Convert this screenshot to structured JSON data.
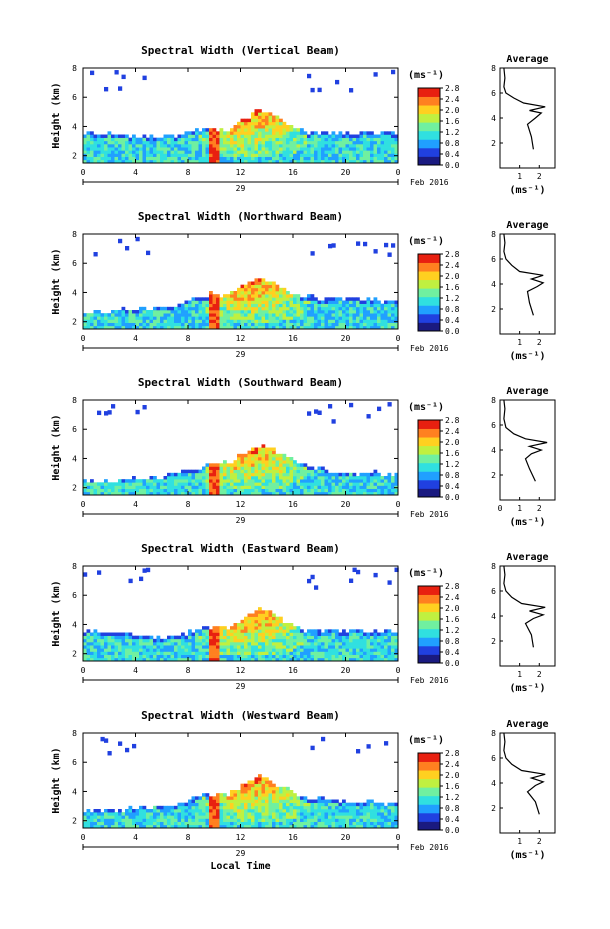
{
  "chart_data": [
    {
      "type": "heatmap",
      "title": "Spectral Width (Vertical Beam)",
      "ylabel": "Height (km)",
      "xlim": [
        0,
        24
      ],
      "ylim": [
        1.5,
        8
      ],
      "x_ticks": [
        "0",
        "4",
        "8",
        "12",
        "16",
        "20",
        "0"
      ],
      "y_ticks": [
        "2",
        "4",
        "6",
        "8"
      ],
      "date_labels": {
        "day": "29",
        "month": "Feb 2016"
      },
      "colorbar": {
        "units": "(ms⁻¹)",
        "ticks": [
          "0.0",
          "0.4",
          "0.8",
          "1.2",
          "1.6",
          "2.0",
          "2.4",
          "2.8"
        ]
      },
      "envelope": [
        {
          "x": 0,
          "h": 3.6
        },
        {
          "x": 3,
          "h": 3.4
        },
        {
          "x": 6,
          "h": 3.2
        },
        {
          "x": 8,
          "h": 3.6
        },
        {
          "x": 9.5,
          "h": 4.0
        },
        {
          "x": 11,
          "h": 3.8
        },
        {
          "x": 12.5,
          "h": 4.6
        },
        {
          "x": 13.5,
          "h": 5.2
        },
        {
          "x": 14.5,
          "h": 4.8
        },
        {
          "x": 16,
          "h": 4.0
        },
        {
          "x": 17,
          "h": 3.6
        },
        {
          "x": 20,
          "h": 3.6
        },
        {
          "x": 24,
          "h": 3.6
        }
      ],
      "average": {
        "title": "Average",
        "xlabel": "(ms⁻¹)",
        "x_ticks": [
          "1",
          "2"
        ],
        "y_ticks": [
          "2",
          "4",
          "6",
          "8"
        ],
        "xlim": [
          0,
          2.8
        ],
        "ylim": [
          0,
          8
        ],
        "profile": [
          [
            1.7,
            1.5
          ],
          [
            1.6,
            2.5
          ],
          [
            1.4,
            3.5
          ],
          [
            1.8,
            4.0
          ],
          [
            2.1,
            4.4
          ],
          [
            1.5,
            4.6
          ],
          [
            2.3,
            4.9
          ],
          [
            1.2,
            5.2
          ],
          [
            0.7,
            5.6
          ],
          [
            0.3,
            6.0
          ],
          [
            0.2,
            6.5
          ],
          [
            0.25,
            7.2
          ],
          [
            0.2,
            8.0
          ]
        ]
      }
    },
    {
      "type": "heatmap",
      "title": "Spectral Width (Northward Beam)",
      "ylabel": "Height (km)",
      "xlim": [
        0,
        24
      ],
      "ylim": [
        1.5,
        8
      ],
      "x_ticks": [
        "0",
        "4",
        "8",
        "12",
        "16",
        "20",
        "0"
      ],
      "y_ticks": [
        "2",
        "4",
        "6",
        "8"
      ],
      "date_labels": {
        "day": "29",
        "month": "Feb 2016"
      },
      "colorbar": {
        "units": "(ms⁻¹)",
        "ticks": [
          "0.0",
          "0.4",
          "0.8",
          "1.2",
          "1.6",
          "2.0",
          "2.4",
          "2.8"
        ]
      },
      "envelope": [
        {
          "x": 0,
          "h": 2.6
        },
        {
          "x": 3,
          "h": 2.8
        },
        {
          "x": 6,
          "h": 3.0
        },
        {
          "x": 8,
          "h": 3.4
        },
        {
          "x": 9.5,
          "h": 3.9
        },
        {
          "x": 11,
          "h": 3.8
        },
        {
          "x": 12.5,
          "h": 4.6
        },
        {
          "x": 13.5,
          "h": 5.1
        },
        {
          "x": 14.5,
          "h": 4.7
        },
        {
          "x": 16,
          "h": 4.0
        },
        {
          "x": 17,
          "h": 3.7
        },
        {
          "x": 20,
          "h": 3.6
        },
        {
          "x": 24,
          "h": 3.4
        }
      ],
      "average": {
        "title": "Average",
        "xlabel": "(ms⁻¹)",
        "x_ticks": [
          "1",
          "2"
        ],
        "y_ticks": [
          "2",
          "4",
          "6",
          "8"
        ],
        "xlim": [
          0,
          2.8
        ],
        "ylim": [
          0,
          8
        ],
        "profile": [
          [
            1.7,
            1.5
          ],
          [
            1.5,
            2.5
          ],
          [
            1.4,
            3.4
          ],
          [
            1.9,
            3.8
          ],
          [
            2.2,
            4.1
          ],
          [
            1.6,
            4.4
          ],
          [
            2.2,
            4.7
          ],
          [
            1.0,
            5.0
          ],
          [
            0.6,
            5.5
          ],
          [
            0.3,
            6.0
          ],
          [
            0.2,
            6.6
          ],
          [
            0.25,
            7.3
          ],
          [
            0.2,
            8.0
          ]
        ]
      }
    },
    {
      "type": "heatmap",
      "title": "Spectral Width (Southward Beam)",
      "ylabel": "Height (km)",
      "xlim": [
        0,
        24
      ],
      "ylim": [
        1.5,
        8
      ],
      "x_ticks": [
        "0",
        "4",
        "8",
        "12",
        "16",
        "20",
        "0"
      ],
      "y_ticks": [
        "2",
        "4",
        "6",
        "8"
      ],
      "date_labels": {
        "day": "29",
        "month": "Feb 2016"
      },
      "colorbar": {
        "units": "(ms⁻¹)",
        "ticks": [
          "0.0",
          "0.4",
          "0.8",
          "1.2",
          "1.6",
          "2.0",
          "2.4",
          "2.8"
        ]
      },
      "envelope": [
        {
          "x": 0,
          "h": 2.4
        },
        {
          "x": 3,
          "h": 2.6
        },
        {
          "x": 6,
          "h": 2.8
        },
        {
          "x": 8,
          "h": 3.2
        },
        {
          "x": 9.5,
          "h": 3.6
        },
        {
          "x": 11,
          "h": 3.7
        },
        {
          "x": 12.5,
          "h": 4.5
        },
        {
          "x": 13.5,
          "h": 5.0
        },
        {
          "x": 14.5,
          "h": 4.6
        },
        {
          "x": 16,
          "h": 3.9
        },
        {
          "x": 17,
          "h": 3.5
        },
        {
          "x": 20,
          "h": 3.0
        },
        {
          "x": 24,
          "h": 3.0
        }
      ],
      "average": {
        "title": "Average",
        "xlabel": "(ms⁻¹)",
        "x_ticks": [
          "0",
          "1",
          "2"
        ],
        "y_ticks": [
          "2",
          "4",
          "6",
          "8"
        ],
        "xlim": [
          0,
          2.8
        ],
        "ylim": [
          0,
          8
        ],
        "profile": [
          [
            1.8,
            1.5
          ],
          [
            1.5,
            2.5
          ],
          [
            1.3,
            3.3
          ],
          [
            1.6,
            3.7
          ],
          [
            2.1,
            4.0
          ],
          [
            1.5,
            4.3
          ],
          [
            2.4,
            4.6
          ],
          [
            1.3,
            4.9
          ],
          [
            0.7,
            5.3
          ],
          [
            0.3,
            5.8
          ],
          [
            0.2,
            6.5
          ],
          [
            0.25,
            7.3
          ],
          [
            0.2,
            8.0
          ]
        ]
      }
    },
    {
      "type": "heatmap",
      "title": "Spectral Width (Eastward Beam)",
      "ylabel": "Height (km)",
      "xlim": [
        0,
        24
      ],
      "ylim": [
        1.5,
        8
      ],
      "x_ticks": [
        "0",
        "4",
        "8",
        "12",
        "16",
        "20",
        "0"
      ],
      "y_ticks": [
        "2",
        "4",
        "6",
        "8"
      ],
      "date_labels": {
        "day": "29",
        "month": "Feb 2016"
      },
      "colorbar": {
        "units": "(ms⁻¹)",
        "ticks": [
          "0.0",
          "0.4",
          "0.8",
          "1.2",
          "1.6",
          "2.0",
          "2.4",
          "2.8"
        ]
      },
      "envelope": [
        {
          "x": 0,
          "h": 3.6
        },
        {
          "x": 3,
          "h": 3.4
        },
        {
          "x": 6,
          "h": 3.0
        },
        {
          "x": 8,
          "h": 3.4
        },
        {
          "x": 9.5,
          "h": 3.8
        },
        {
          "x": 11,
          "h": 3.8
        },
        {
          "x": 12.5,
          "h": 4.6
        },
        {
          "x": 13.5,
          "h": 5.1
        },
        {
          "x": 14.5,
          "h": 4.7
        },
        {
          "x": 16,
          "h": 4.0
        },
        {
          "x": 17,
          "h": 3.6
        },
        {
          "x": 20,
          "h": 3.6
        },
        {
          "x": 24,
          "h": 3.5
        }
      ],
      "average": {
        "title": "Average",
        "xlabel": "(ms⁻¹)",
        "x_ticks": [
          "1",
          "2"
        ],
        "y_ticks": [
          "2",
          "4",
          "6",
          "8"
        ],
        "xlim": [
          0,
          2.8
        ],
        "ylim": [
          0,
          8
        ],
        "profile": [
          [
            1.7,
            1.5
          ],
          [
            1.6,
            2.5
          ],
          [
            1.3,
            3.4
          ],
          [
            1.7,
            3.8
          ],
          [
            2.2,
            4.1
          ],
          [
            1.5,
            4.4
          ],
          [
            2.3,
            4.7
          ],
          [
            1.1,
            5.0
          ],
          [
            0.6,
            5.5
          ],
          [
            0.3,
            6.0
          ],
          [
            0.2,
            6.6
          ],
          [
            0.25,
            7.3
          ],
          [
            0.2,
            8.0
          ]
        ]
      }
    },
    {
      "type": "heatmap",
      "title": "Spectral Width (Westward Beam)",
      "ylabel": "Height (km)",
      "xlabel": "Local Time",
      "xlim": [
        0,
        24
      ],
      "ylim": [
        1.5,
        8
      ],
      "x_ticks": [
        "0",
        "4",
        "8",
        "12",
        "16",
        "20",
        "0"
      ],
      "y_ticks": [
        "2",
        "4",
        "6",
        "8"
      ],
      "date_labels": {
        "day": "29",
        "month": "Feb 2016"
      },
      "colorbar": {
        "units": "(ms⁻¹)",
        "ticks": [
          "0.0",
          "0.4",
          "0.8",
          "1.2",
          "1.6",
          "2.0",
          "2.4",
          "2.8"
        ]
      },
      "envelope": [
        {
          "x": 0,
          "h": 2.6
        },
        {
          "x": 3,
          "h": 2.8
        },
        {
          "x": 6,
          "h": 3.0
        },
        {
          "x": 8,
          "h": 3.4
        },
        {
          "x": 9.5,
          "h": 3.9
        },
        {
          "x": 11,
          "h": 3.8
        },
        {
          "x": 12.5,
          "h": 4.6
        },
        {
          "x": 13.5,
          "h": 5.2
        },
        {
          "x": 14.5,
          "h": 4.7
        },
        {
          "x": 16,
          "h": 4.0
        },
        {
          "x": 17,
          "h": 3.6
        },
        {
          "x": 20,
          "h": 3.3
        },
        {
          "x": 24,
          "h": 3.2
        }
      ],
      "average": {
        "title": "Average",
        "xlabel": "(ms⁻¹)",
        "x_ticks": [
          "1",
          "2"
        ],
        "y_ticks": [
          "2",
          "4",
          "6",
          "8"
        ],
        "xlim": [
          0,
          2.8
        ],
        "ylim": [
          0,
          8
        ],
        "profile": [
          [
            2.0,
            1.5
          ],
          [
            1.8,
            2.5
          ],
          [
            1.4,
            3.3
          ],
          [
            1.8,
            3.8
          ],
          [
            2.2,
            4.1
          ],
          [
            1.6,
            4.4
          ],
          [
            2.3,
            4.7
          ],
          [
            1.1,
            5.0
          ],
          [
            0.6,
            5.5
          ],
          [
            0.3,
            6.0
          ],
          [
            0.2,
            6.6
          ],
          [
            0.25,
            7.3
          ],
          [
            0.2,
            8.0
          ]
        ]
      }
    }
  ],
  "colors": {
    "scale": [
      "#1a1a80",
      "#2040e0",
      "#20a0ff",
      "#30e0e0",
      "#70f0a0",
      "#c0f040",
      "#ffd020",
      "#ff8020",
      "#e82010"
    ]
  }
}
